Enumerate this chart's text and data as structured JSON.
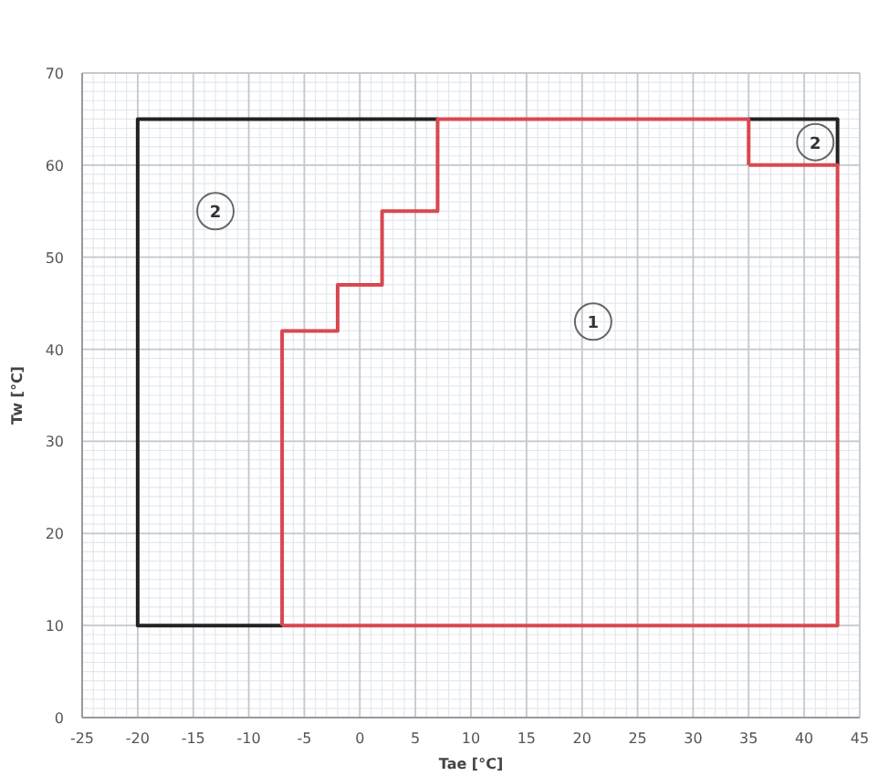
{
  "chart_data": {
    "type": "line",
    "xlabel": "Tae [°C]",
    "ylabel": "Tw [°C]",
    "xlim": [
      -25,
      45
    ],
    "ylim": [
      0,
      70
    ],
    "xticks": [
      -25,
      -20,
      -15,
      -10,
      -5,
      0,
      5,
      10,
      15,
      20,
      25,
      30,
      35,
      40,
      45
    ],
    "yticks": [
      0,
      10,
      20,
      30,
      40,
      50,
      60,
      70
    ],
    "grid": true,
    "marker": "none",
    "line_style": "solid",
    "series": [
      {
        "color": "#222222",
        "x": [
          7,
          -20,
          -20,
          -7
        ],
        "values": [
          65,
          65,
          10,
          10
        ]
      },
      {
        "color": "#222222",
        "x": [
          35,
          43,
          43
        ],
        "values": [
          65,
          65,
          60
        ]
      },
      {
        "color": "#d9484f",
        "x": [
          35,
          35,
          7,
          7,
          2,
          2,
          -2,
          -2,
          -7,
          -7
        ],
        "values": [
          60,
          65,
          65,
          55,
          55,
          47,
          47,
          42,
          42,
          10
        ]
      },
      {
        "color": "#d9484f",
        "x": [
          -7,
          43,
          43,
          35
        ],
        "values": [
          10,
          10,
          60,
          60
        ]
      }
    ],
    "annotations": [
      {
        "text": "2",
        "x": -13,
        "y": 55
      },
      {
        "text": "1",
        "x": 21,
        "y": 43
      },
      {
        "text": "2",
        "x": 41,
        "y": 62.5
      }
    ]
  }
}
